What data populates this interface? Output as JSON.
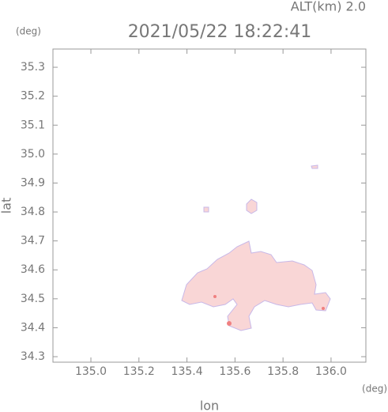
{
  "chart_data": {
    "type": "map",
    "title": "2021/05/22 18:22:41",
    "altitude_label": "ALT(km) 2.0",
    "y_unit": "(deg)",
    "x_unit": "(deg)",
    "x_label": "lon",
    "y_label": "lat",
    "xlim": [
      134.842,
      136.145
    ],
    "ylim": [
      34.281,
      35.363
    ],
    "xticks": [
      {
        "value": 135.0,
        "label": "135.0"
      },
      135.2,
      135.4,
      135.6,
      135.8,
      {
        "value": 136.0,
        "label": "136.0"
      }
    ],
    "yticks": [
      34.3,
      34.4,
      34.5,
      34.6,
      34.7,
      34.8,
      34.9,
      {
        "value": 35.0,
        "label": "35.0"
      },
      35.1,
      35.2,
      35.3
    ]
  }
}
